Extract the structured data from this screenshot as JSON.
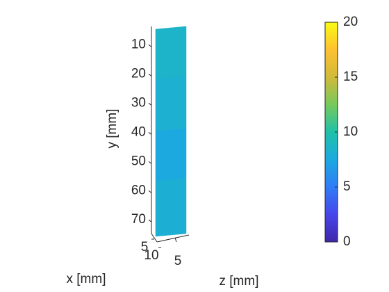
{
  "chart_data": {
    "type": "surface",
    "x_label": "x [mm]",
    "y_label": "y [mm]",
    "z_label": "z [mm]",
    "ylim": [
      3,
      74
    ],
    "yticks": [
      10,
      20,
      30,
      40,
      50,
      60,
      70
    ],
    "xticks": [
      5,
      10
    ],
    "zticks": [
      5
    ],
    "surface_y": [
      3,
      20,
      38,
      55,
      74
    ],
    "values": [
      8.5,
      8.2,
      7.5,
      8.0,
      8.3
    ],
    "clim": [
      0,
      20
    ],
    "colorbar_ticks": [
      0,
      5,
      10,
      15,
      20
    ],
    "colormap": [
      "#3e26a8",
      "#4746eb",
      "#2f7cf6",
      "#1ca9df",
      "#1fc1a9",
      "#76c95c",
      "#d1ba3a",
      "#fdc131",
      "#f9fb15"
    ]
  }
}
